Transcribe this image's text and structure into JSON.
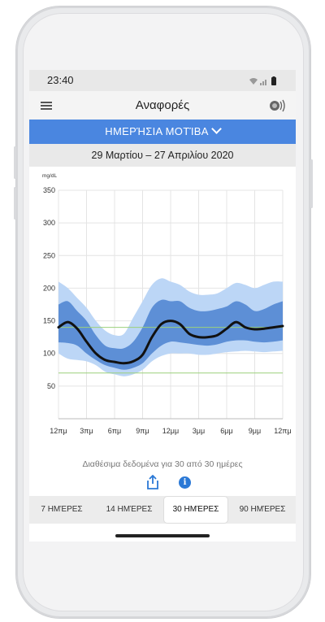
{
  "status": {
    "time": "23:40"
  },
  "header": {
    "title": "Αναφορές"
  },
  "mode": {
    "label": "ΗΜΕΡΉΣΙΑ ΜΟΤΊΒΑ"
  },
  "date_range": "29 Μαρτίου – 27 Απριλίου 2020",
  "chart_data": {
    "type": "area",
    "ylabel": "mg/dL",
    "ylim": [
      0,
      350
    ],
    "yticks": [
      350,
      300,
      250,
      200,
      150,
      100,
      50
    ],
    "xticks": [
      "12πμ",
      "3πμ",
      "6πμ",
      "9πμ",
      "12μμ",
      "3μμ",
      "6μμ",
      "9μμ",
      "12πμ"
    ],
    "target_range": [
      70,
      140
    ],
    "x": [
      0,
      1,
      2,
      3,
      4,
      5,
      6,
      7,
      8,
      9,
      10,
      11,
      12,
      13,
      14,
      15,
      16,
      17,
      18,
      19,
      20,
      21,
      22,
      23,
      24
    ],
    "series": [
      {
        "name": "p10_p90_low",
        "values": [
          100,
          92,
          90,
          88,
          82,
          72,
          68,
          65,
          68,
          75,
          88,
          96,
          100,
          100,
          100,
          98,
          98,
          100,
          102,
          103,
          104,
          103,
          102,
          103,
          104
        ]
      },
      {
        "name": "p25_p75_low",
        "values": [
          117,
          116,
          112,
          100,
          90,
          82,
          78,
          75,
          78,
          85,
          100,
          112,
          118,
          117,
          115,
          113,
          112,
          114,
          118,
          120,
          120,
          118,
          117,
          118,
          120
        ]
      },
      {
        "name": "median",
        "values": [
          140,
          148,
          138,
          118,
          100,
          90,
          87,
          85,
          88,
          98,
          125,
          145,
          150,
          145,
          130,
          125,
          125,
          128,
          138,
          148,
          140,
          137,
          138,
          140,
          142
        ]
      },
      {
        "name": "p25_p75_high",
        "values": [
          175,
          180,
          165,
          150,
          128,
          112,
          108,
          108,
          118,
          140,
          170,
          182,
          180,
          180,
          170,
          165,
          165,
          168,
          172,
          180,
          175,
          165,
          168,
          175,
          180
        ]
      },
      {
        "name": "p10_p90_high",
        "values": [
          210,
          200,
          185,
          170,
          150,
          135,
          128,
          130,
          155,
          180,
          205,
          215,
          210,
          205,
          195,
          190,
          190,
          192,
          200,
          208,
          205,
          200,
          205,
          210,
          210
        ]
      }
    ],
    "colors": {
      "outer_band": "#bcd6f6",
      "inner_band": "#5d8fd6",
      "median": "#111111",
      "target": "#9bd07b",
      "grid": "#e4e4e4"
    }
  },
  "availability": "Διαθέσιμα δεδομένα για 30 από 30 ημέρες",
  "tabs": [
    "7 ΗΜΈΡΕΣ",
    "14 ΗΜΈΡΕΣ",
    "30 ΗΜΈΡΕΣ",
    "90 ΗΜΈΡΕΣ"
  ],
  "active_tab": 2
}
